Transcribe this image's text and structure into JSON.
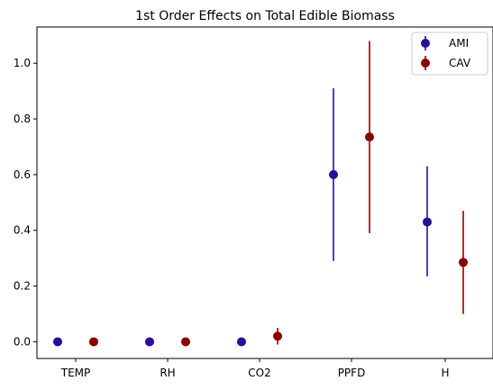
{
  "chart_data": {
    "type": "scatter",
    "title": "1st Order Effects on Total Edible Biomass",
    "xlabel": "",
    "ylabel": "",
    "categories": [
      "TEMP",
      "RH",
      "CO2",
      "PPFD",
      "H"
    ],
    "ylim": [
      -0.06,
      1.13
    ],
    "y_ticks": [
      0.0,
      0.2,
      0.4,
      0.6,
      0.8,
      1.0
    ],
    "y_tick_labels": [
      "0.0",
      "0.2",
      "0.4",
      "0.6",
      "0.8",
      "1.0"
    ],
    "grid": false,
    "legend_position": "top-right",
    "series": [
      {
        "name": "AMI",
        "color": "#2a0d9e",
        "values": [
          0.0,
          0.0,
          0.0,
          0.6,
          0.43
        ],
        "err_low": [
          0.0,
          0.0,
          0.0,
          0.29,
          0.235
        ],
        "err_high": [
          0.0,
          0.0,
          0.0,
          0.91,
          0.63
        ]
      },
      {
        "name": "CAV",
        "color": "#8b0000",
        "values": [
          0.0,
          0.0,
          0.02,
          0.735,
          0.285
        ],
        "err_low": [
          0.0,
          0.0,
          -0.01,
          0.39,
          0.1
        ],
        "err_high": [
          0.0,
          0.0,
          0.05,
          1.08,
          0.47
        ]
      }
    ]
  }
}
